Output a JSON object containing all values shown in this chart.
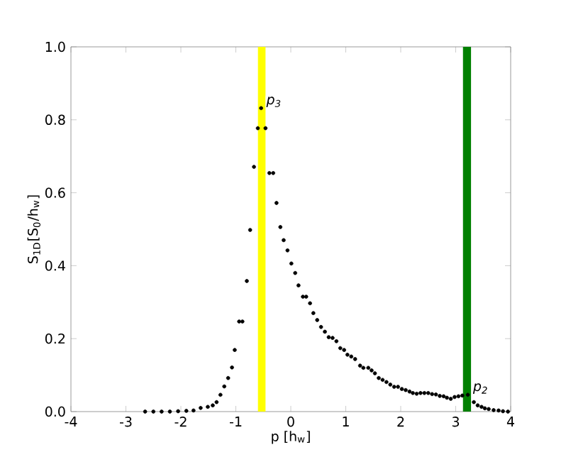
{
  "chart_data": {
    "type": "scatter",
    "xlabel": "p [h$_{w}$]",
    "ylabel": "S$_{1D}$[S$_{0}$/h$_{w}$]",
    "xlim": [
      -4,
      4
    ],
    "ylim": [
      0,
      1
    ],
    "xticks": [
      -4,
      -3,
      -2,
      -1,
      0,
      1,
      2,
      3,
      4
    ],
    "yticks": [
      {
        "value": 0,
        "label": "0.0"
      },
      {
        "value": 0.2,
        "label": "0.2"
      },
      {
        "value": 0.4,
        "label": "0.4"
      },
      {
        "value": 0.6,
        "label": "0.6"
      },
      {
        "value": 0.8,
        "label": "0.8"
      },
      {
        "value": 1,
        "label": "1.0"
      }
    ],
    "grid": false,
    "marker": "circle",
    "bands": [
      {
        "axis": "x",
        "from": -0.6,
        "to": -0.46,
        "color": "#ffff00"
      },
      {
        "axis": "x",
        "from": 3.13,
        "to": 3.28,
        "color": "#008000"
      }
    ],
    "annotations": [
      {
        "text": "p$_{3}$",
        "x": -0.54,
        "y": 0.832
      },
      {
        "text": "p$_{2}$",
        "x": 3.22,
        "y": 0.046
      }
    ],
    "series": [
      {
        "color": "#000000",
        "x": [
          -2.65,
          -2.5,
          -2.35,
          -2.2,
          -2.05,
          -1.9,
          -1.77,
          -1.64,
          -1.51,
          -1.42,
          -1.35,
          -1.28,
          -1.21,
          -1.14,
          -1.07,
          -1.02,
          -0.94,
          -0.88,
          -0.8,
          -0.74,
          -0.67,
          -0.6,
          -0.54,
          -0.46,
          -0.39,
          -0.32,
          -0.26,
          -0.19,
          -0.13,
          -0.06,
          0.01,
          0.08,
          0.14,
          0.22,
          0.28,
          0.35,
          0.41,
          0.48,
          0.55,
          0.62,
          0.69,
          0.76,
          0.83,
          0.9,
          0.97,
          1.03,
          1.1,
          1.17,
          1.26,
          1.32,
          1.41,
          1.47,
          1.53,
          1.6,
          1.67,
          1.74,
          1.81,
          1.88,
          1.95,
          2.02,
          2.09,
          2.16,
          2.22,
          2.29,
          2.36,
          2.43,
          2.5,
          2.57,
          2.64,
          2.71,
          2.78,
          2.84,
          2.91,
          2.98,
          3.05,
          3.12,
          3.22,
          3.33,
          3.4,
          3.47,
          3.53,
          3.6,
          3.69,
          3.78,
          3.86,
          3.95
        ],
        "values": [
          0,
          0,
          0,
          0,
          0.001,
          0.002,
          0.003,
          0.01,
          0.013,
          0.017,
          0.026,
          0.046,
          0.069,
          0.092,
          0.121,
          0.169,
          0.247,
          0.247,
          0.358,
          0.498,
          0.671,
          0.777,
          0.832,
          0.777,
          0.654,
          0.654,
          0.572,
          0.506,
          0.47,
          0.442,
          0.406,
          0.38,
          0.346,
          0.315,
          0.315,
          0.297,
          0.27,
          0.251,
          0.232,
          0.219,
          0.204,
          0.202,
          0.193,
          0.174,
          0.169,
          0.156,
          0.151,
          0.144,
          0.126,
          0.12,
          0.12,
          0.113,
          0.105,
          0.092,
          0.087,
          0.081,
          0.074,
          0.068,
          0.068,
          0.062,
          0.059,
          0.055,
          0.051,
          0.049,
          0.051,
          0.051,
          0.051,
          0.048,
          0.047,
          0.043,
          0.042,
          0.038,
          0.035,
          0.04,
          0.042,
          0.044,
          0.046,
          0.026,
          0.017,
          0.013,
          0.009,
          0.007,
          0.004,
          0.003,
          0.001,
          0
        ]
      }
    ]
  }
}
